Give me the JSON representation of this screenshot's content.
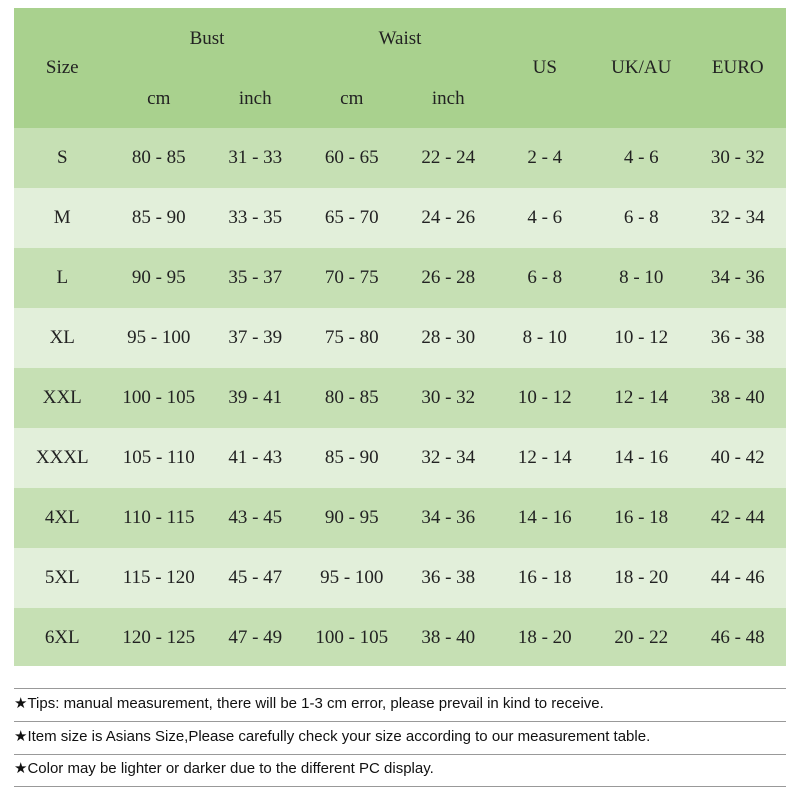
{
  "table": {
    "header": {
      "size": "Size",
      "bust": "Bust",
      "waist": "Waist",
      "bust_cm": "cm",
      "bust_inch": "inch",
      "waist_cm": "cm",
      "waist_inch": "inch",
      "us": "US",
      "uk_au": "UK/AU",
      "euro": "EURO"
    },
    "rows": [
      [
        "S",
        "80 - 85",
        "31 - 33",
        "60 - 65",
        "22 - 24",
        "2 - 4",
        "4 - 6",
        "30 - 32"
      ],
      [
        "M",
        "85 - 90",
        "33 - 35",
        "65 - 70",
        "24 - 26",
        "4 - 6",
        "6 - 8",
        "32 - 34"
      ],
      [
        "L",
        "90 - 95",
        "35 - 37",
        "70 - 75",
        "26 - 28",
        "6 - 8",
        "8 - 10",
        "34 - 36"
      ],
      [
        "XL",
        "95 - 100",
        "37 - 39",
        "75 - 80",
        "28 - 30",
        "8 - 10",
        "10 - 12",
        "36 - 38"
      ],
      [
        "XXL",
        "100 - 105",
        "39 - 41",
        "80 - 85",
        "30 - 32",
        "10 - 12",
        "12 - 14",
        "38 - 40"
      ],
      [
        "XXXL",
        "105 - 110",
        "41 - 43",
        "85 - 90",
        "32 - 34",
        "12 - 14",
        "14 - 16",
        "40 - 42"
      ],
      [
        "4XL",
        "110 - 115",
        "43 - 45",
        "90 - 95",
        "34 - 36",
        "14 - 16",
        "16 - 18",
        "42 - 44"
      ],
      [
        "5XL",
        "115 - 120",
        "45 - 47",
        "95 - 100",
        "36 - 38",
        "16 - 18",
        "18 - 20",
        "44 - 46"
      ],
      [
        "6XL",
        "120 - 125",
        "47 - 49",
        "100 - 105",
        "38 - 40",
        "18 - 20",
        "20 - 22",
        "46 - 48"
      ]
    ]
  },
  "tips": [
    "★Tips: manual measurement, there will be 1-3 cm error, please prevail in kind to receive.",
    "★Item size is Asians Size,Please carefully check your size according to our measurement table.",
    "★Color may be lighter or darker due to the different PC display."
  ]
}
